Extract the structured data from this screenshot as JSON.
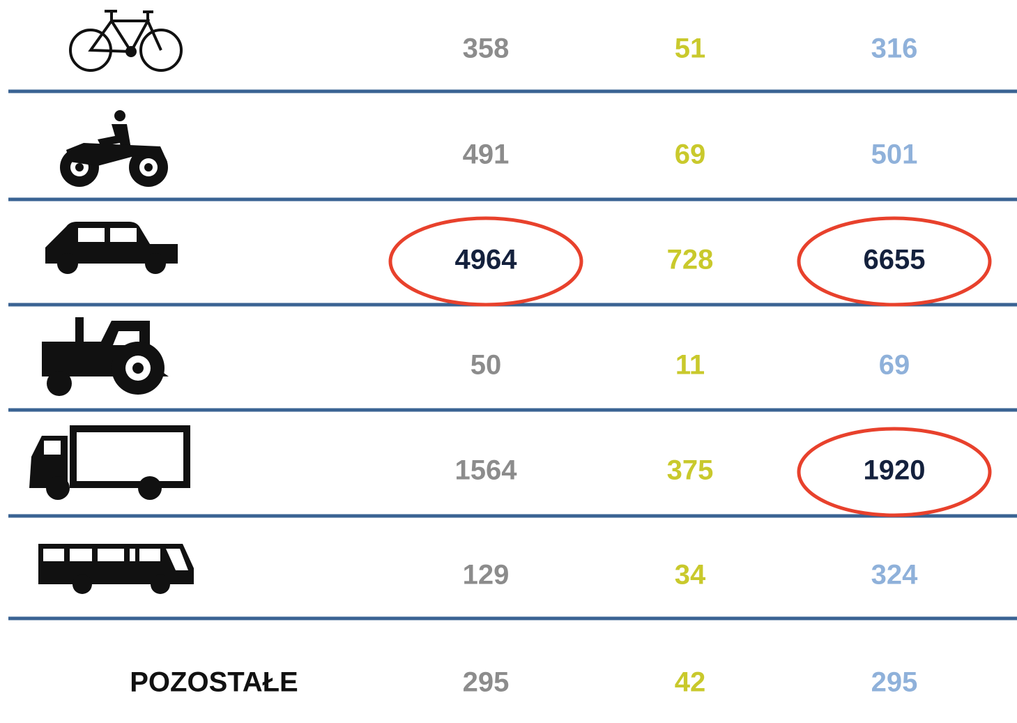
{
  "table": {
    "rows": [
      {
        "values": [
          358,
          51,
          316
        ]
      },
      {
        "values": [
          491,
          69,
          501
        ]
      },
      {
        "values": [
          4964,
          728,
          6655
        ],
        "circled": [
          0,
          2
        ]
      },
      {
        "values": [
          50,
          11,
          69
        ]
      },
      {
        "values": [
          1564,
          375,
          1920
        ],
        "circled": [
          2
        ]
      },
      {
        "values": [
          129,
          34,
          324
        ]
      },
      {
        "label": "POZOSTAŁE",
        "values": [
          295,
          42,
          295
        ]
      }
    ],
    "column_colors": [
      "#8c8c8c",
      "#c9c92c",
      "#8fb1da"
    ],
    "circle_color": "#e8412c",
    "circled_text_color": "#14213d",
    "rule_color": "#3a6393"
  }
}
